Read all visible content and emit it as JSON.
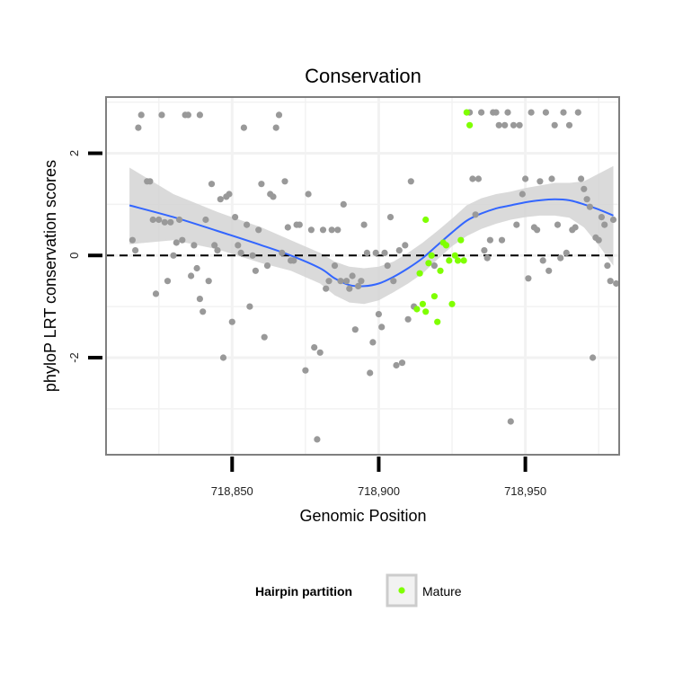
{
  "chart_data": {
    "type": "scatter",
    "title": "Conservation",
    "xlabel": "Genomic Position",
    "ylabel": "phyloP LRT conservation scores",
    "xlim": [
      718807,
      718982
    ],
    "ylim": [
      -3.9,
      3.1
    ],
    "x_ticks": [
      718850,
      718900,
      718950
    ],
    "x_tick_labels": [
      "718,850",
      "718,900",
      "718,950"
    ],
    "y_ticks": [
      -2,
      0,
      2
    ],
    "y_tick_labels": [
      "-2",
      "0",
      "2"
    ],
    "grid": true,
    "hline": 0,
    "legend": {
      "title": "Hairpin partition",
      "entries": [
        "Mature"
      ],
      "position": "bottom"
    },
    "colors": {
      "other": "#999999",
      "mature": "#7FFF00",
      "smooth": "#3366FF",
      "ribbon": "#D3D3D3",
      "panel_border": "#7F7F7F",
      "grid": "#F2F2F2"
    },
    "series": [
      {
        "name": "",
        "points": [
          [
            718816,
            0.3
          ],
          [
            718817,
            0.1
          ],
          [
            718818,
            2.5
          ],
          [
            718819,
            2.75
          ],
          [
            718821,
            1.45
          ],
          [
            718822,
            1.45
          ],
          [
            718823,
            0.7
          ],
          [
            718824,
            -0.75
          ],
          [
            718825,
            0.7
          ],
          [
            718826,
            2.75
          ],
          [
            718827,
            0.65
          ],
          [
            718828,
            -0.5
          ],
          [
            718829,
            0.65
          ],
          [
            718830,
            0.0
          ],
          [
            718831,
            0.25
          ],
          [
            718832,
            0.7
          ],
          [
            718833,
            0.3
          ],
          [
            718834,
            2.75
          ],
          [
            718835,
            2.75
          ],
          [
            718836,
            -0.4
          ],
          [
            718837,
            0.2
          ],
          [
            718838,
            -0.25
          ],
          [
            718839,
            -0.85
          ],
          [
            718839,
            2.75
          ],
          [
            718840,
            -1.1
          ],
          [
            718841,
            0.7
          ],
          [
            718842,
            -0.5
          ],
          [
            718843,
            1.4
          ],
          [
            718844,
            0.2
          ],
          [
            718845,
            0.1
          ],
          [
            718846,
            1.1
          ],
          [
            718847,
            -2.0
          ],
          [
            718848,
            1.15
          ],
          [
            718849,
            1.2
          ],
          [
            718850,
            -1.3
          ],
          [
            718851,
            0.75
          ],
          [
            718852,
            0.2
          ],
          [
            718853,
            0.05
          ],
          [
            718854,
            2.5
          ],
          [
            718855,
            0.6
          ],
          [
            718856,
            -1.0
          ],
          [
            718857,
            0.0
          ],
          [
            718858,
            -0.3
          ],
          [
            718859,
            0.5
          ],
          [
            718860,
            1.4
          ],
          [
            718861,
            -1.6
          ],
          [
            718862,
            -0.2
          ],
          [
            718863,
            1.2
          ],
          [
            718864,
            1.15
          ],
          [
            718865,
            2.5
          ],
          [
            718866,
            2.75
          ],
          [
            718867,
            0.05
          ],
          [
            718868,
            1.45
          ],
          [
            718869,
            0.55
          ],
          [
            718870,
            -0.1
          ],
          [
            718871,
            -0.1
          ],
          [
            718872,
            0.6
          ],
          [
            718873,
            0.6
          ],
          [
            718875,
            -2.25
          ],
          [
            718876,
            1.2
          ],
          [
            718877,
            0.5
          ],
          [
            718878,
            -1.8
          ],
          [
            718879,
            -3.6
          ],
          [
            718880,
            -1.9
          ],
          [
            718881,
            0.5
          ],
          [
            718882,
            -0.65
          ],
          [
            718883,
            -0.5
          ],
          [
            718884,
            0.5
          ],
          [
            718885,
            -0.2
          ],
          [
            718886,
            0.5
          ],
          [
            718887,
            -0.5
          ],
          [
            718888,
            1.0
          ],
          [
            718889,
            -0.5
          ],
          [
            718890,
            -0.65
          ],
          [
            718891,
            -0.4
          ],
          [
            718892,
            -1.45
          ],
          [
            718893,
            -0.6
          ],
          [
            718894,
            -0.5
          ],
          [
            718895,
            0.6
          ],
          [
            718896,
            0.05
          ],
          [
            718897,
            -2.3
          ],
          [
            718898,
            -1.7
          ],
          [
            718899,
            0.05
          ],
          [
            718900,
            -1.15
          ],
          [
            718901,
            -1.4
          ],
          [
            718902,
            0.05
          ],
          [
            718903,
            -0.2
          ],
          [
            718904,
            0.75
          ],
          [
            718905,
            -0.5
          ],
          [
            718906,
            -2.15
          ],
          [
            718907,
            0.1
          ],
          [
            718908,
            -2.1
          ],
          [
            718909,
            0.2
          ],
          [
            718910,
            -1.25
          ],
          [
            718911,
            1.45
          ],
          [
            718912,
            -1.0
          ],
          [
            718919,
            -0.2
          ],
          [
            718931,
            2.8
          ],
          [
            718932,
            1.5
          ],
          [
            718933,
            0.8
          ],
          [
            718934,
            1.5
          ],
          [
            718935,
            2.8
          ],
          [
            718936,
            0.1
          ],
          [
            718937,
            -0.05
          ],
          [
            718938,
            0.3
          ],
          [
            718939,
            2.8
          ],
          [
            718940,
            2.8
          ],
          [
            718941,
            2.55
          ],
          [
            718942,
            0.3
          ],
          [
            718943,
            2.55
          ],
          [
            718944,
            2.8
          ],
          [
            718945,
            -3.25
          ],
          [
            718946,
            2.55
          ],
          [
            718947,
            0.6
          ],
          [
            718948,
            2.55
          ],
          [
            718949,
            1.2
          ],
          [
            718950,
            1.5
          ],
          [
            718951,
            -0.45
          ],
          [
            718952,
            2.8
          ],
          [
            718953,
            0.55
          ],
          [
            718954,
            0.5
          ],
          [
            718955,
            1.45
          ],
          [
            718956,
            -0.1
          ],
          [
            718957,
            2.8
          ],
          [
            718958,
            -0.3
          ],
          [
            718959,
            1.5
          ],
          [
            718960,
            2.55
          ],
          [
            718961,
            0.6
          ],
          [
            718962,
            -0.05
          ],
          [
            718963,
            2.8
          ],
          [
            718964,
            0.05
          ],
          [
            718965,
            2.55
          ],
          [
            718966,
            0.5
          ],
          [
            718967,
            0.55
          ],
          [
            718968,
            2.8
          ],
          [
            718969,
            1.5
          ],
          [
            718970,
            1.3
          ],
          [
            718971,
            1.1
          ],
          [
            718972,
            0.95
          ],
          [
            718973,
            -2.0
          ],
          [
            718974,
            0.35
          ],
          [
            718975,
            0.3
          ],
          [
            718976,
            0.75
          ],
          [
            718977,
            0.6
          ],
          [
            718978,
            -0.2
          ],
          [
            718979,
            -0.5
          ],
          [
            718980,
            0.7
          ],
          [
            718981,
            -0.55
          ]
        ]
      },
      {
        "name": "Mature",
        "points": [
          [
            718913,
            -1.05
          ],
          [
            718914,
            -0.35
          ],
          [
            718915,
            -0.95
          ],
          [
            718916,
            -1.1
          ],
          [
            718916,
            0.7
          ],
          [
            718917,
            -0.15
          ],
          [
            718918,
            0.0
          ],
          [
            718919,
            -0.8
          ],
          [
            718920,
            -1.3
          ],
          [
            718921,
            -0.3
          ],
          [
            718922,
            0.25
          ],
          [
            718923,
            0.2
          ],
          [
            718924,
            -0.1
          ],
          [
            718925,
            -0.95
          ],
          [
            718926,
            0.0
          ],
          [
            718927,
            -0.1
          ],
          [
            718928,
            0.3
          ],
          [
            718929,
            -0.1
          ],
          [
            718930,
            2.8
          ],
          [
            718931,
            2.55
          ]
        ]
      }
    ],
    "smooth_line": [
      [
        718815,
        0.98
      ],
      [
        718830,
        0.75
      ],
      [
        718845,
        0.48
      ],
      [
        718860,
        0.2
      ],
      [
        718870,
        0.0
      ],
      [
        718880,
        -0.25
      ],
      [
        718885,
        -0.45
      ],
      [
        718890,
        -0.58
      ],
      [
        718895,
        -0.6
      ],
      [
        718900,
        -0.55
      ],
      [
        718905,
        -0.42
      ],
      [
        718910,
        -0.25
      ],
      [
        718915,
        -0.05
      ],
      [
        718920,
        0.2
      ],
      [
        718925,
        0.45
      ],
      [
        718930,
        0.68
      ],
      [
        718935,
        0.82
      ],
      [
        718940,
        0.92
      ],
      [
        718945,
        0.98
      ],
      [
        718950,
        1.04
      ],
      [
        718955,
        1.08
      ],
      [
        718960,
        1.1
      ],
      [
        718965,
        1.08
      ],
      [
        718970,
        1.0
      ],
      [
        718975,
        0.9
      ],
      [
        718980,
        0.78
      ]
    ],
    "smooth_ribbon_upper": [
      [
        718815,
        1.72
      ],
      [
        718830,
        1.2
      ],
      [
        718845,
        0.85
      ],
      [
        718860,
        0.55
      ],
      [
        718870,
        0.3
      ],
      [
        718880,
        0.05
      ],
      [
        718885,
        -0.12
      ],
      [
        718890,
        -0.22
      ],
      [
        718895,
        -0.25
      ],
      [
        718900,
        -0.22
      ],
      [
        718905,
        -0.12
      ],
      [
        718910,
        0.05
      ],
      [
        718915,
        0.25
      ],
      [
        718920,
        0.48
      ],
      [
        718925,
        0.72
      ],
      [
        718930,
        0.98
      ],
      [
        718935,
        1.12
      ],
      [
        718940,
        1.2
      ],
      [
        718945,
        1.25
      ],
      [
        718950,
        1.32
      ],
      [
        718955,
        1.37
      ],
      [
        718960,
        1.42
      ],
      [
        718965,
        1.42
      ],
      [
        718970,
        1.45
      ],
      [
        718975,
        1.6
      ],
      [
        718980,
        1.75
      ]
    ],
    "smooth_ribbon_lower": [
      [
        718815,
        0.22
      ],
      [
        718830,
        0.3
      ],
      [
        718845,
        0.12
      ],
      [
        718860,
        -0.15
      ],
      [
        718870,
        -0.3
      ],
      [
        718880,
        -0.55
      ],
      [
        718885,
        -0.78
      ],
      [
        718890,
        -0.92
      ],
      [
        718895,
        -0.95
      ],
      [
        718900,
        -0.88
      ],
      [
        718905,
        -0.72
      ],
      [
        718910,
        -0.55
      ],
      [
        718915,
        -0.35
      ],
      [
        718920,
        -0.08
      ],
      [
        718925,
        0.18
      ],
      [
        718930,
        0.38
      ],
      [
        718935,
        0.52
      ],
      [
        718940,
        0.62
      ],
      [
        718945,
        0.7
      ],
      [
        718950,
        0.75
      ],
      [
        718955,
        0.78
      ],
      [
        718960,
        0.78
      ],
      [
        718965,
        0.74
      ],
      [
        718970,
        0.55
      ],
      [
        718975,
        0.2
      ],
      [
        718980,
        -0.2
      ]
    ]
  }
}
